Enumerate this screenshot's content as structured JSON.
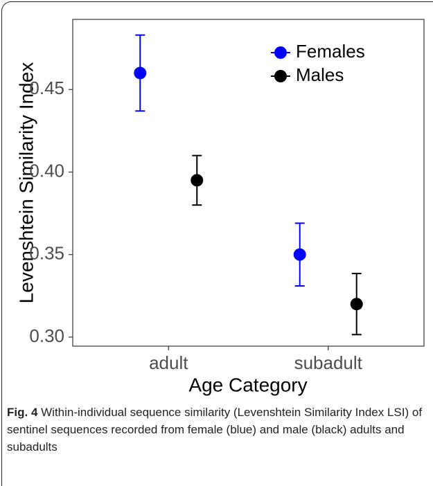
{
  "chart_data": {
    "type": "point",
    "categories": [
      "adult",
      "subadult"
    ],
    "series": [
      {
        "name": "Females",
        "color": "#0000ff",
        "values": [
          0.46,
          0.35
        ],
        "errors": [
          0.023,
          0.019
        ]
      },
      {
        "name": "Males",
        "color": "#000000",
        "values": [
          0.395,
          0.32
        ],
        "errors": [
          0.015,
          0.0185
        ]
      }
    ],
    "x_label": "Age Category",
    "y_label": "Levenshtein Similarity Index",
    "ylim": [
      0.2945,
      0.4925
    ],
    "yticks": [
      {
        "value": 0.3,
        "label": "0.30"
      },
      0.35,
      {
        "value": 0.4,
        "label": "0.40"
      },
      0.45
    ],
    "grid": false,
    "legend_position": "top-right"
  },
  "caption": {
    "label": "Fig. 4",
    "text": "Within-individual sequence similarity (Levenshtein Similarity Index LSI) of sentinel sequences recorded from female (blue) and male (black) adults and subadults"
  }
}
